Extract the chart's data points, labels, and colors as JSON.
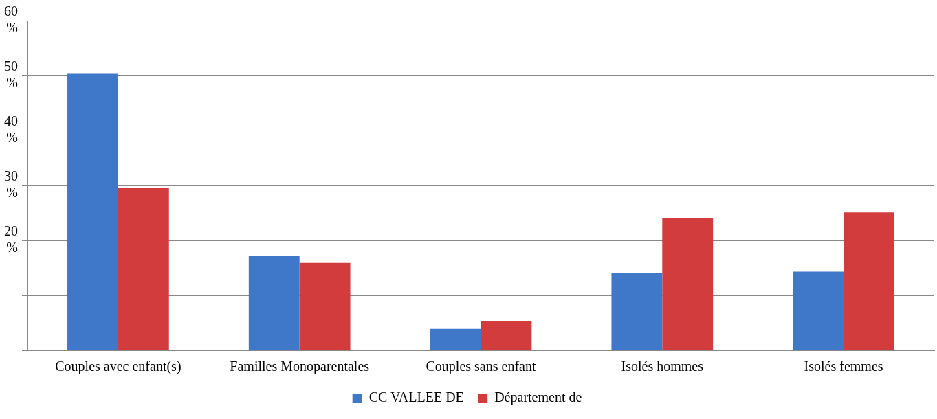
{
  "chart_data": {
    "type": "bar",
    "categories": [
      "Couples avec enfant(s)",
      "Familles Monoparentales",
      "Couples sans enfant",
      "Isolés hommes",
      "Isolés femmes"
    ],
    "series": [
      {
        "name": "CC VALLEE DE",
        "color": "#3f78c9",
        "values": [
          50.3,
          17.2,
          3.9,
          14.1,
          14.3
        ]
      },
      {
        "name": "Département de",
        "color": "#d23c3c",
        "values": [
          29.6,
          15.9,
          5.3,
          24,
          25.1
        ]
      }
    ],
    "ylim": [
      0,
      60
    ],
    "yticks": [
      {
        "value": 0,
        "label": null
      },
      {
        "value": 10,
        "label": null
      },
      {
        "value": 20,
        "label": "20 %"
      },
      {
        "value": 30,
        "label": "30 %"
      },
      {
        "value": 40,
        "label": "40 %"
      },
      {
        "value": 50,
        "label": "50 %"
      },
      {
        "value": 60,
        "label": "60 %"
      }
    ],
    "grid": "y",
    "legend": "bottom"
  }
}
